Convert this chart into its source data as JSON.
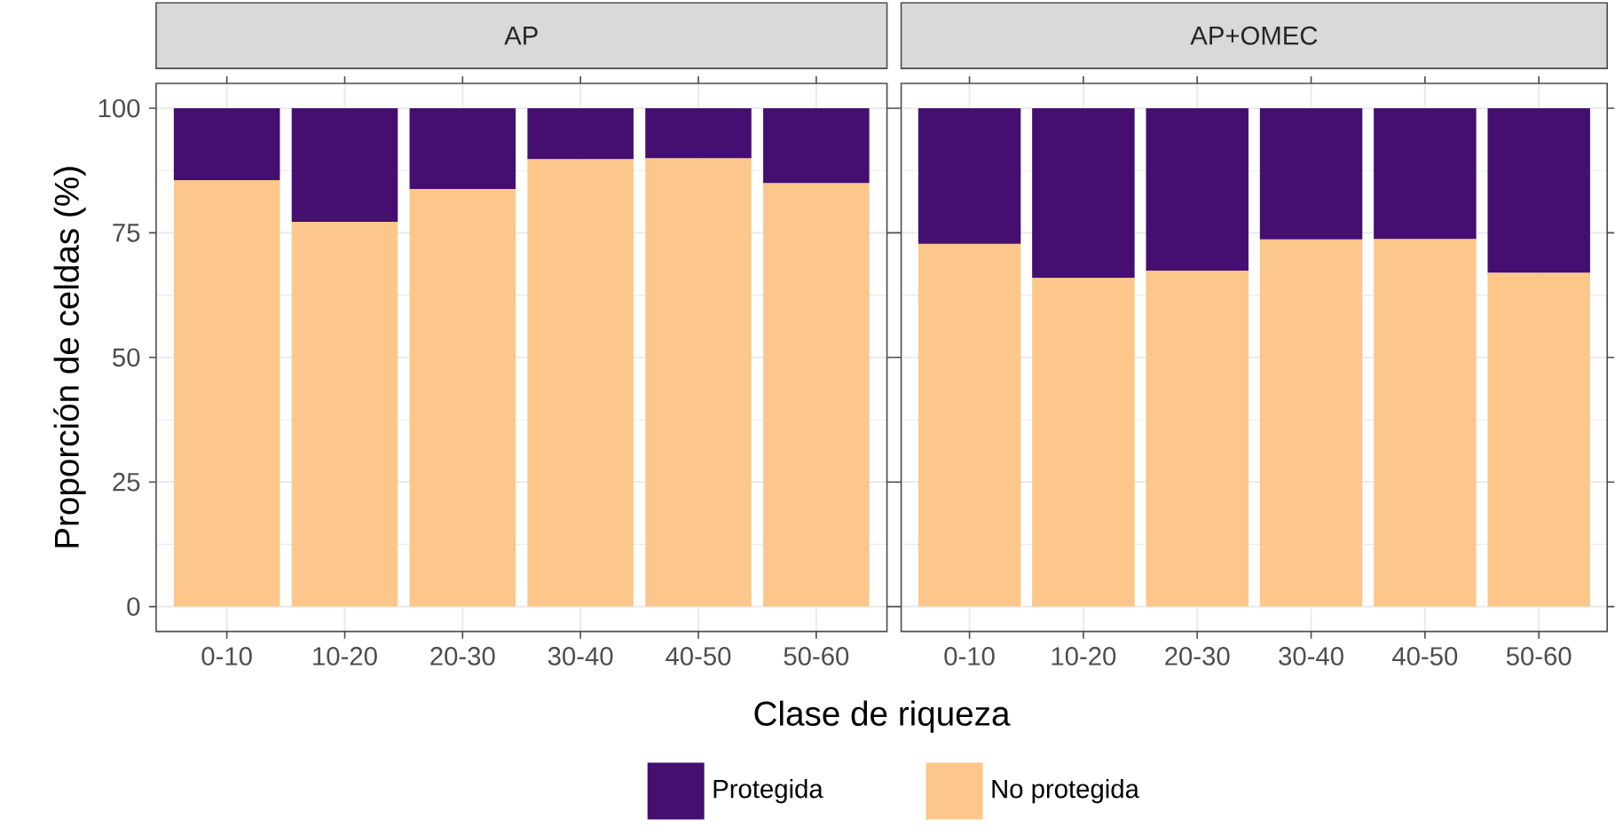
{
  "chart_data": [
    {
      "type": "bar",
      "stacked": true,
      "title": "AP",
      "ylabel": "Proporción de celdas (%)",
      "xlabel": "Clase de riqueza",
      "categories": [
        "0-10",
        "10-20",
        "20-30",
        "30-40",
        "40-50",
        "50-60"
      ],
      "series": [
        {
          "name": "No protegida",
          "color": "#fdc68a",
          "values": [
            85.6,
            77.2,
            83.8,
            89.8,
            90,
            85
          ]
        },
        {
          "name": "Protegida",
          "color": "#440f70",
          "values": [
            14.4,
            22.8,
            16.2,
            10.2,
            10,
            15
          ]
        }
      ],
      "ylim": [
        -5,
        105
      ],
      "yticks": [
        0,
        25,
        50,
        75,
        100
      ],
      "grid": true,
      "legend": "bottom"
    },
    {
      "type": "bar",
      "stacked": true,
      "title": "AP+OMEC",
      "categories": [
        "0-10",
        "10-20",
        "20-30",
        "30-40",
        "40-50",
        "50-60"
      ],
      "series": [
        {
          "color": "#fdc68a",
          "values": [
            72.8,
            66,
            67.4,
            73.7,
            73.8,
            67
          ]
        },
        {
          "color": "#440f70",
          "values": [
            27.2,
            34,
            32.6,
            26.3,
            26.2,
            33
          ]
        }
      ],
      "ylim": [
        -5,
        105
      ],
      "yticks": [
        0,
        25,
        50,
        75,
        100
      ],
      "grid": true,
      "tick_labels": "x"
    }
  ]
}
